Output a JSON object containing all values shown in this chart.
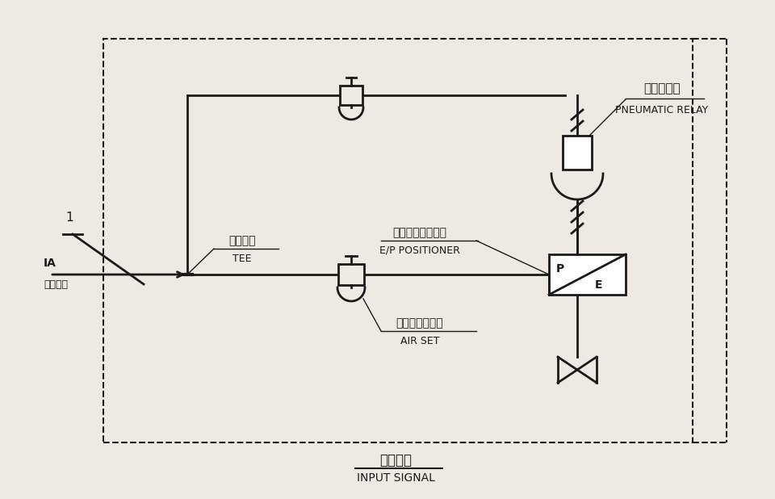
{
  "bg_color": "#ede9e3",
  "line_color": "#1a1a1a",
  "label_1": "1",
  "label_ia_1": "IA",
  "label_ia_2": "仪表气源",
  "label_tee_cn": "三通接头",
  "label_tee_en": "TEE",
  "label_ep_cn": "电－气阀门定位器",
  "label_ep_en": "E/P POSITIONER",
  "label_airset_cn": "空气过滤减压器",
  "label_airset_en": "AIR SET",
  "label_relay_cn": "气动继动器",
  "label_relay_en": "PNEUMATIC RELAY",
  "label_input_cn": "输入信号",
  "label_input_en": "INPUT SIGNAL",
  "label_p": "P",
  "label_e": "E"
}
